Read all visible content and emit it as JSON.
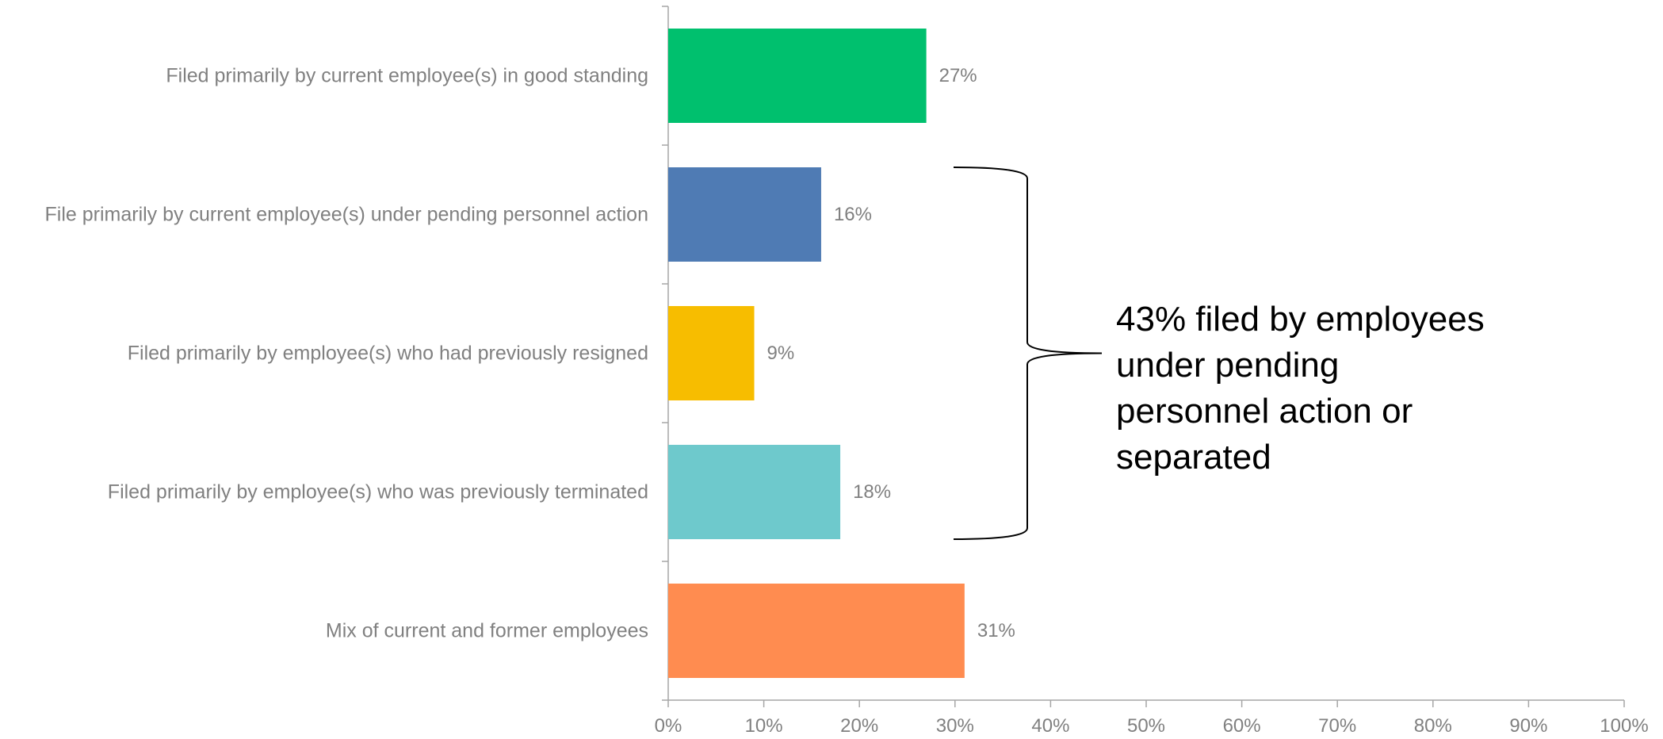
{
  "chart_data": {
    "type": "bar",
    "orientation": "horizontal",
    "categories": [
      "Filed primarily by current employee(s) in good standing",
      "File primarily by current employee(s) under pending personnel action",
      "Filed primarily by employee(s) who had previously resigned",
      "Filed primarily by employee(s) who was previously terminated",
      "Mix of current and former employees"
    ],
    "values": [
      27,
      16,
      9,
      18,
      31
    ],
    "value_labels": [
      "27%",
      "16%",
      "9%",
      "18%",
      "31%"
    ],
    "colors": [
      "#00c06e",
      "#4f7bb4",
      "#f7bd00",
      "#6ec9cc",
      "#ff8c50"
    ],
    "xlim": [
      0,
      100
    ],
    "xticks": [
      0,
      10,
      20,
      30,
      40,
      50,
      60,
      70,
      80,
      90,
      100
    ],
    "xtick_labels": [
      "0%",
      "10%",
      "20%",
      "30%",
      "40%",
      "50%",
      "60%",
      "70%",
      "80%",
      "90%",
      "100%"
    ],
    "grid": false,
    "legend": "none",
    "annotation": {
      "text_lines": [
        "43% filed by employees",
        "under pending",
        "personnel action or",
        "separated"
      ],
      "bracket_spans_categories": [
        1,
        3
      ]
    }
  }
}
